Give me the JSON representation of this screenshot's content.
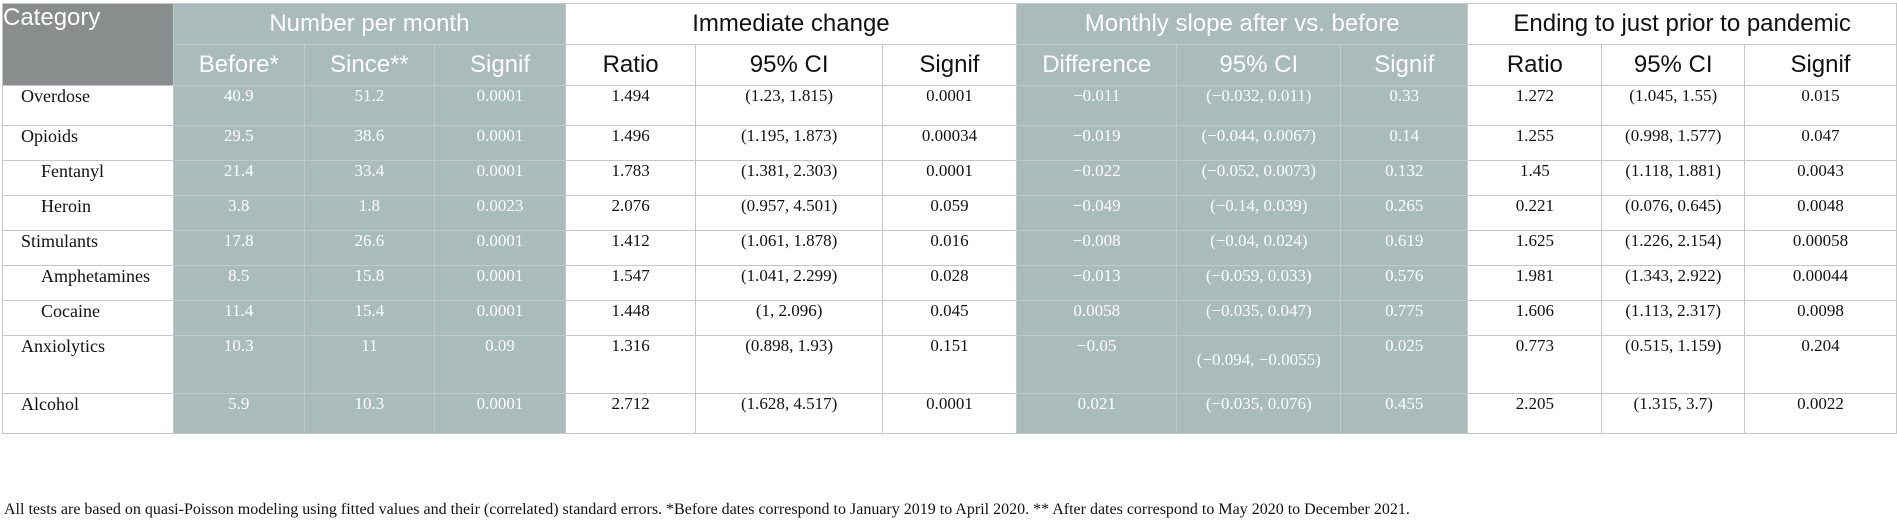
{
  "header": {
    "category": "Category",
    "groups": {
      "number_per_month": "Number per month",
      "immediate_change": "Immediate change",
      "monthly_slope": "Monthly slope after vs. before",
      "ending": "Ending to just prior to pandemic"
    },
    "sub": {
      "before": "Before*",
      "since": "Since**",
      "signif": "Signif",
      "ratio": "Ratio",
      "ci": "95% CI",
      "difference": "Difference"
    }
  },
  "rows": [
    {
      "label": "Overdose",
      "before": "40.9",
      "since": "51.2",
      "signif1": "0.0001",
      "ratio1": "1.494",
      "ci1": "(1.23, 1.815)",
      "signif2": "0.0001",
      "diff": "−0.011",
      "ci2": "(−0.032, 0.011)",
      "signif3": "0.33",
      "ratio2": "1.272",
      "ci3": "(1.045, 1.55)",
      "signif4": "0.015"
    },
    {
      "label": "Opioids",
      "before": "29.5",
      "since": "38.6",
      "signif1": "0.0001",
      "ratio1": "1.496",
      "ci1": "(1.195, 1.873)",
      "signif2": "0.00034",
      "diff": "−0.019",
      "ci2": "(−0.044, 0.0067)",
      "signif3": "0.14",
      "ratio2": "1.255",
      "ci3": "(0.998, 1.577)",
      "signif4": "0.047"
    },
    {
      "label": "Fentanyl",
      "before": "21.4",
      "since": "33.4",
      "signif1": "0.0001",
      "ratio1": "1.783",
      "ci1": "(1.381, 2.303)",
      "signif2": "0.0001",
      "diff": "−0.022",
      "ci2": "(−0.052, 0.0073)",
      "signif3": "0.132",
      "ratio2": "1.45",
      "ci3": "(1.118, 1.881)",
      "signif4": "0.0043"
    },
    {
      "label": "Heroin",
      "before": "3.8",
      "since": "1.8",
      "signif1": "0.0023",
      "ratio1": "2.076",
      "ci1": "(0.957, 4.501)",
      "signif2": "0.059",
      "diff": "−0.049",
      "ci2": "(−0.14, 0.039)",
      "signif3": "0.265",
      "ratio2": "0.221",
      "ci3": "(0.076, 0.645)",
      "signif4": "0.0048"
    },
    {
      "label": "Stimulants",
      "before": "17.8",
      "since": "26.6",
      "signif1": "0.0001",
      "ratio1": "1.412",
      "ci1": "(1.061, 1.878)",
      "signif2": "0.016",
      "diff": "−0.008",
      "ci2": "(−0.04, 0.024)",
      "signif3": "0.619",
      "ratio2": "1.625",
      "ci3": "(1.226, 2.154)",
      "signif4": "0.00058"
    },
    {
      "label": "Amphetamines",
      "before": "8.5",
      "since": "15.8",
      "signif1": "0.0001",
      "ratio1": "1.547",
      "ci1": "(1.041, 2.299)",
      "signif2": "0.028",
      "diff": "−0.013",
      "ci2": "(−0.059, 0.033)",
      "signif3": "0.576",
      "ratio2": "1.981",
      "ci3": "(1.343, 2.922)",
      "signif4": "0.00044"
    },
    {
      "label": "Cocaine",
      "before": "11.4",
      "since": "15.4",
      "signif1": "0.0001",
      "ratio1": "1.448",
      "ci1": "(1, 2.096)",
      "signif2": "0.045",
      "diff": "0.0058",
      "ci2": "(−0.035, 0.047)",
      "signif3": "0.775",
      "ratio2": "1.606",
      "ci3": "(1.113, 2.317)",
      "signif4": "0.0098"
    },
    {
      "label": "Anxiolytics",
      "before": "10.3",
      "since": "11",
      "signif1": "0.09",
      "ratio1": "1.316",
      "ci1": "(0.898, 1.93)",
      "signif2": "0.151",
      "diff": "−0.05",
      "ci2": "(−0.094, −0.0055)",
      "signif3": "0.025",
      "ratio2": "0.773",
      "ci3": "(0.515, 1.159)",
      "signif4": "0.204"
    },
    {
      "label": "Alcohol",
      "before": "5.9",
      "since": "10.3",
      "signif1": "0.0001",
      "ratio1": "2.712",
      "ci1": "(1.628, 4.517)",
      "signif2": "0.0001",
      "diff": "0.021",
      "ci2": "(−0.035, 0.076)",
      "signif3": "0.455",
      "ratio2": "2.205",
      "ci3": "(1.315, 3.7)",
      "signif4": "0.0022"
    }
  ],
  "footnote": "All tests are based on quasi-Poisson modeling using fitted values and their (correlated) standard errors. *Before dates correspond to January 2019 to April 2020. ** After dates correspond to May 2020 to December 2021."
}
